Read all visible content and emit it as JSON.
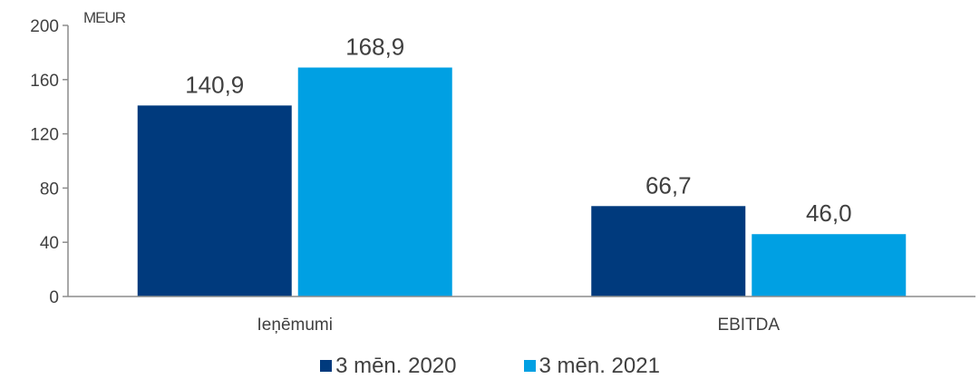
{
  "chart_data": {
    "type": "bar",
    "unit_label": "MEUR",
    "categories": [
      "Ieņēmumi",
      "EBITDA"
    ],
    "series": [
      {
        "name": "3 mēn. 2020",
        "color": "#003A7D",
        "values": [
          140.9,
          66.7
        ],
        "labels": [
          "140,9",
          "66,7"
        ]
      },
      {
        "name": "3 mēn. 2021",
        "color": "#00A0E3",
        "values": [
          168.9,
          46.0
        ],
        "labels": [
          "168,9",
          "46,0"
        ]
      }
    ],
    "ylim": [
      0,
      200
    ],
    "yticks": [
      "0",
      "40",
      "80",
      "120",
      "160",
      "200"
    ],
    "grid": false,
    "legend_position": "bottom"
  }
}
